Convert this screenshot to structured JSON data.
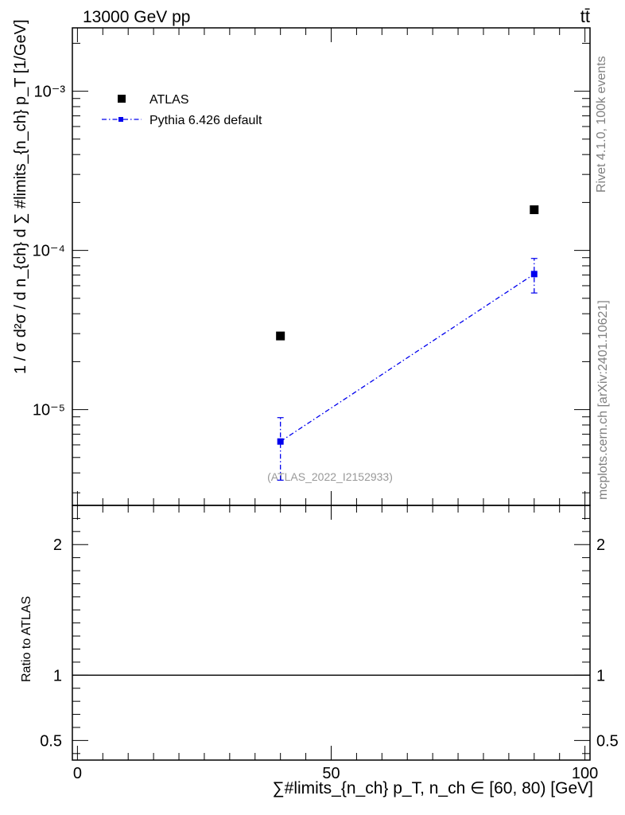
{
  "header": {
    "energy_label": "13000 GeV pp",
    "process_label": "tt̄"
  },
  "side_labels": {
    "rivet": "Rivet 4.1.0,  100k events",
    "source": "mcplots.cern.ch [arXiv:2401.10621]"
  },
  "analysis_id": "(ATLAS_2022_I2152933)",
  "chart_data": [
    {
      "type": "scatter",
      "panel": "main",
      "ylabel": "1 / σ d²σ / d n_{ch} d ∑ #limits_{n_ch} p_T [1/GeV]",
      "yscale": "log",
      "ylim": [
        2.5e-06,
        0.0025
      ],
      "xlim": [
        -1,
        101
      ],
      "ytick_labels": [
        "10⁻⁵",
        "10⁻⁴",
        "10⁻³"
      ],
      "series": [
        {
          "name": "ATLAS",
          "color": "#000000",
          "style": "marker",
          "points": [
            {
              "x": 40,
              "y": 2.9e-05
            },
            {
              "x": 90,
              "y": 0.00018
            }
          ]
        },
        {
          "name": "Pythia 6.426 default",
          "color": "#0000ee",
          "style": "dash-dot line with error bars",
          "points": [
            {
              "x": 40,
              "y": 6.3e-06,
              "ylo": 3.6e-06,
              "yhi": 8.9e-06
            },
            {
              "x": 90,
              "y": 7.1e-05,
              "ylo": 5.4e-05,
              "yhi": 8.9e-05
            }
          ]
        }
      ],
      "legend": "top-left"
    },
    {
      "type": "line",
      "panel": "ratio",
      "ylabel": "Ratio to ATLAS",
      "ylim": [
        0.35,
        2.3
      ],
      "xlim": [
        -1,
        101
      ],
      "ytick_labels": [
        "0.5",
        "1",
        "2"
      ],
      "reference_y": 1,
      "xlabel": "∑#limits_{n_ch} p_T, n_ch ∈ [60, 80) [GeV]",
      "xtick_labels": [
        "0",
        "50",
        "100"
      ]
    }
  ]
}
